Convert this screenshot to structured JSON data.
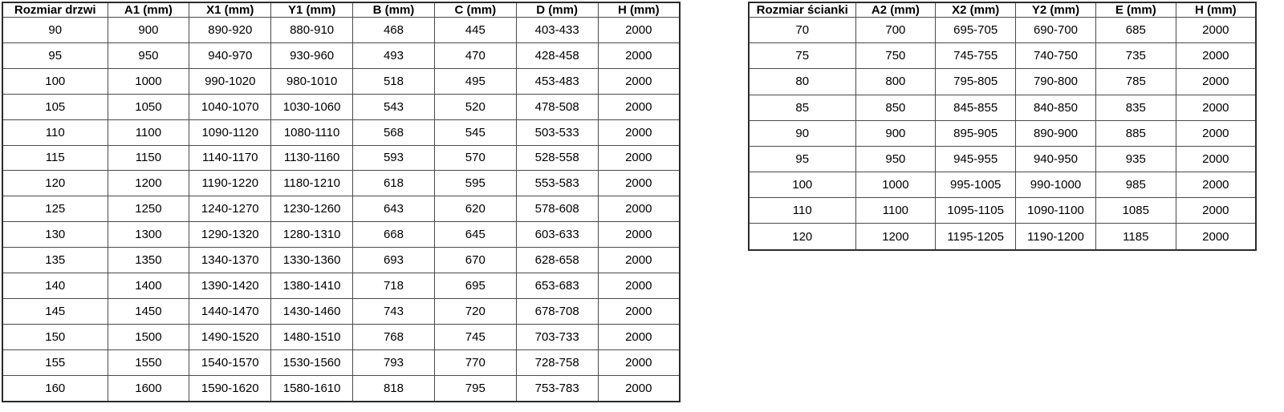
{
  "colors": {
    "background": "#ffffff",
    "table_border": "#2b2b2b",
    "cell_border": "#4a4a4a",
    "text": "#000000"
  },
  "tables": {
    "doors": {
      "title": "door-sizes-table",
      "headers": [
        "Rozmiar drzwi",
        "A1 (mm)",
        "X1 (mm)",
        "Y1 (mm)",
        "B (mm)",
        "C (mm)",
        "D (mm)",
        "H (mm)"
      ],
      "rows": [
        [
          "90",
          "900",
          "890-920",
          "880-910",
          "468",
          "445",
          "403-433",
          "2000"
        ],
        [
          "95",
          "950",
          "940-970",
          "930-960",
          "493",
          "470",
          "428-458",
          "2000"
        ],
        [
          "100",
          "1000",
          "990-1020",
          "980-1010",
          "518",
          "495",
          "453-483",
          "2000"
        ],
        [
          "105",
          "1050",
          "1040-1070",
          "1030-1060",
          "543",
          "520",
          "478-508",
          "2000"
        ],
        [
          "110",
          "1100",
          "1090-1120",
          "1080-1110",
          "568",
          "545",
          "503-533",
          "2000"
        ],
        [
          "115",
          "1150",
          "1140-1170",
          "1130-1160",
          "593",
          "570",
          "528-558",
          "2000"
        ],
        [
          "120",
          "1200",
          "1190-1220",
          "1180-1210",
          "618",
          "595",
          "553-583",
          "2000"
        ],
        [
          "125",
          "1250",
          "1240-1270",
          "1230-1260",
          "643",
          "620",
          "578-608",
          "2000"
        ],
        [
          "130",
          "1300",
          "1290-1320",
          "1280-1310",
          "668",
          "645",
          "603-633",
          "2000"
        ],
        [
          "135",
          "1350",
          "1340-1370",
          "1330-1360",
          "693",
          "670",
          "628-658",
          "2000"
        ],
        [
          "140",
          "1400",
          "1390-1420",
          "1380-1410",
          "718",
          "695",
          "653-683",
          "2000"
        ],
        [
          "145",
          "1450",
          "1440-1470",
          "1430-1460",
          "743",
          "720",
          "678-708",
          "2000"
        ],
        [
          "150",
          "1500",
          "1490-1520",
          "1480-1510",
          "768",
          "745",
          "703-733",
          "2000"
        ],
        [
          "155",
          "1550",
          "1540-1570",
          "1530-1560",
          "793",
          "770",
          "728-758",
          "2000"
        ],
        [
          "160",
          "1600",
          "1590-1620",
          "1580-1610",
          "818",
          "795",
          "753-783",
          "2000"
        ]
      ]
    },
    "walls": {
      "title": "wall-sizes-table",
      "headers": [
        "Rozmiar ścianki",
        "A2 (mm)",
        "X2 (mm)",
        "Y2 (mm)",
        "E (mm)",
        "H (mm)"
      ],
      "rows": [
        [
          "70",
          "700",
          "695-705",
          "690-700",
          "685",
          "2000"
        ],
        [
          "75",
          "750",
          "745-755",
          "740-750",
          "735",
          "2000"
        ],
        [
          "80",
          "800",
          "795-805",
          "790-800",
          "785",
          "2000"
        ],
        [
          "85",
          "850",
          "845-855",
          "840-850",
          "835",
          "2000"
        ],
        [
          "90",
          "900",
          "895-905",
          "890-900",
          "885",
          "2000"
        ],
        [
          "95",
          "950",
          "945-955",
          "940-950",
          "935",
          "2000"
        ],
        [
          "100",
          "1000",
          "995-1005",
          "990-1000",
          "985",
          "2000"
        ],
        [
          "110",
          "1100",
          "1095-1105",
          "1090-1100",
          "1085",
          "2000"
        ],
        [
          "120",
          "1200",
          "1195-1205",
          "1190-1200",
          "1185",
          "2000"
        ]
      ]
    }
  }
}
